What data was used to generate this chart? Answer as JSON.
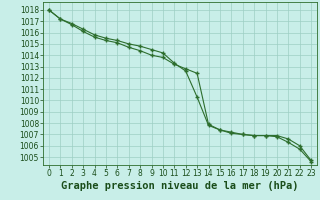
{
  "title": "Graphe pression niveau de la mer (hPa)",
  "background_color": "#c8eee8",
  "plot_bg_color": "#c8eee8",
  "grid_color": "#9dcfc4",
  "line_color": "#2d6e2d",
  "marker_color": "#2d6e2d",
  "x_values": [
    0,
    1,
    2,
    3,
    4,
    5,
    6,
    7,
    8,
    9,
    10,
    11,
    12,
    13,
    14,
    15,
    16,
    17,
    18,
    19,
    20,
    21,
    22,
    23
  ],
  "line1": [
    1018.0,
    1017.2,
    1016.8,
    1016.3,
    1015.8,
    1015.5,
    1015.3,
    1015.0,
    1014.8,
    1014.5,
    1014.2,
    1013.3,
    1012.6,
    1010.3,
    1007.8,
    1007.4,
    1007.1,
    1007.0,
    1006.9,
    1006.9,
    1006.8,
    1006.3,
    1005.7,
    1004.6
  ],
  "line2": [
    1018.0,
    1017.2,
    1016.7,
    1016.1,
    1015.6,
    1015.3,
    1015.1,
    1014.7,
    1014.4,
    1014.0,
    1013.8,
    1013.2,
    1012.8,
    1012.4,
    1007.9,
    1007.4,
    1007.2,
    1007.0,
    1006.9,
    1006.9,
    1006.9,
    1006.6,
    1006.0,
    1004.7
  ],
  "ylim_min": 1004.3,
  "ylim_max": 1018.7,
  "ytick_min": 1005,
  "ytick_max": 1018,
  "title_fontsize": 7.5,
  "tick_fontsize": 5.5,
  "title_color": "#1a4d1a",
  "tick_color": "#1a4d1a"
}
